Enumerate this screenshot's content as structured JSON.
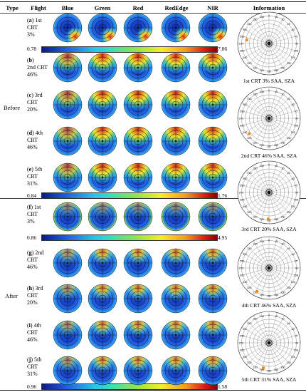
{
  "headers": {
    "type": "Type",
    "flight": "Flight",
    "bands": [
      "Blue",
      "Green",
      "Red",
      "RedEdge",
      "NIR"
    ],
    "information": "Information"
  },
  "types": {
    "before": "Before",
    "after": "After"
  },
  "flights": [
    {
      "id": "a",
      "line1": "1st",
      "line2": "CRT",
      "line3": "3%"
    },
    {
      "id": "b",
      "line1": "",
      "line2": "2nd CRT",
      "line3": "46%"
    },
    {
      "id": "c",
      "line1": "3rd",
      "line2": "CRT",
      "line3": "20%"
    },
    {
      "id": "d",
      "line1": "4th",
      "line2": "CRT",
      "line3": "46%"
    },
    {
      "id": "e",
      "line1": "5th",
      "line2": "CRT",
      "line3": "31%"
    },
    {
      "id": "f",
      "line1": "1st",
      "line2": "CRT",
      "line3": "3%"
    },
    {
      "id": "g",
      "line1": "2nd",
      "line2": "CRT",
      "line3": "46%"
    },
    {
      "id": "h",
      "line1": "3rd",
      "line2": "CRT",
      "line3": "20%"
    },
    {
      "id": "i",
      "line1": "4th",
      "line2": "CRT",
      "line3": "46%"
    },
    {
      "id": "j",
      "line1": "5th",
      "line2": "CRT",
      "line3": "31%"
    }
  ],
  "scales": [
    {
      "min": "0.78",
      "max": "7.06"
    },
    {
      "min": "0.84",
      "max": "1.76"
    },
    {
      "min": "0.86",
      "max": "4.95"
    },
    {
      "min": "0.96",
      "max": "1.58"
    }
  ],
  "info_captions": [
    "1st CRT 3% SAA, SZA",
    "2nd CRT 46% SAA, SZA",
    "3rd CRT 20% SAA, SZA",
    "4th CRT 46% SAA, SZA",
    "5th CRT 31% SAA, SZA"
  ],
  "polar_labels": [
    "345",
    "0",
    "15",
    "330",
    "30",
    "315",
    "45",
    "300",
    "60",
    "285",
    "75",
    "270",
    "90",
    "255",
    "105",
    "240",
    "120",
    "225",
    "135",
    "210",
    "150",
    "195",
    "165",
    "180"
  ],
  "colors": {
    "disk_blue": "#1f52d8",
    "disk_dark": "#0c2aa8",
    "hot": "#e8261c",
    "warm": "#f6d629",
    "sun_marker": "#f08a22"
  }
}
